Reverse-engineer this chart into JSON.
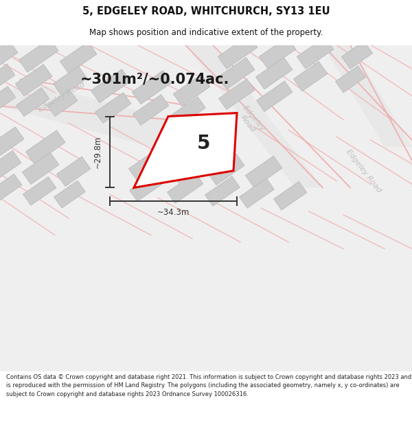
{
  "title": "5, EDGELEY ROAD, WHITCHURCH, SY13 1EU",
  "subtitle": "Map shows position and indicative extent of the property.",
  "footer": "Contains OS data © Crown copyright and database right 2021. This information is subject to Crown copyright and database rights 2023 and is reproduced with the permission of HM Land Registry. The polygons (including the associated geometry, namely x, y co-ordinates) are subject to Crown copyright and database rights 2023 Ordnance Survey 100026316.",
  "area_label": "~301m²/~0.074ac.",
  "width_label": "~34.3m",
  "height_label": "~29.8m",
  "plot_number": "5",
  "bg_color": "#ffffff",
  "map_bg": "#eeeeee",
  "road_fill": "#e0e0e0",
  "road_line_color": "#f0b0b0",
  "building_fill": "#cccccc",
  "building_stroke": "#bbbbbb",
  "plot_fill": "#ffffff",
  "plot_stroke": "#dd0000",
  "road_label_color": "#c0c0c0",
  "dim_color": "#333333",
  "title_color": "#111111",
  "footer_color": "#222222",
  "title_fontsize": 10.5,
  "subtitle_fontsize": 8.5,
  "footer_fontsize": 6.0,
  "area_fontsize": 15,
  "dim_fontsize": 8.5,
  "plot_label_fontsize": 20,
  "road_label_fontsize": 8
}
